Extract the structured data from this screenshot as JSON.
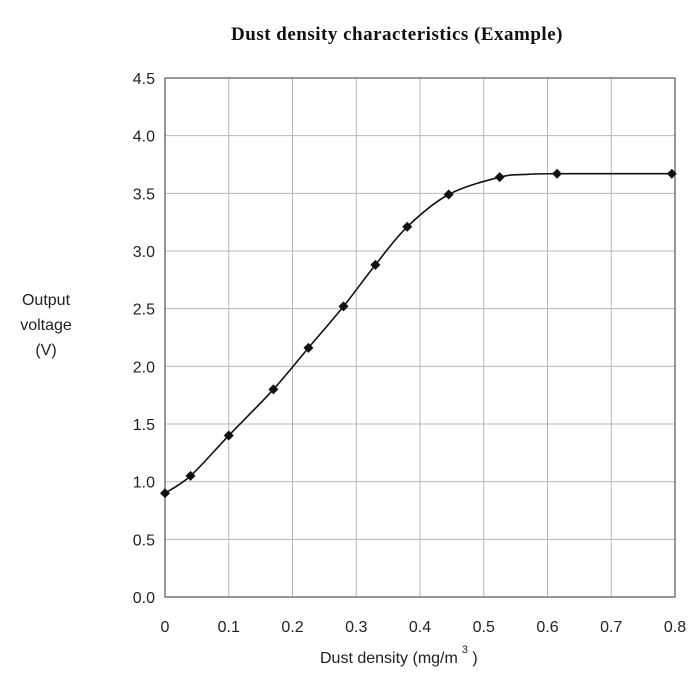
{
  "chart_data": {
    "type": "line",
    "title": "Dust density characteristics (Example)",
    "xlabel": {
      "main": "Dust density (mg/m",
      "sup": "3",
      "close": " )"
    },
    "ylabel": [
      "Output",
      "voltage",
      "(V)"
    ],
    "xlim": [
      0,
      0.8
    ],
    "ylim": [
      0,
      4.5
    ],
    "x_ticks": [
      "0",
      "0.1",
      "0.2",
      "0.3",
      "0.4",
      "0.5",
      "0.6",
      "0.7",
      "0.8"
    ],
    "y_ticks": [
      "0.0",
      "0.5",
      "1.0",
      "1.5",
      "2.0",
      "2.5",
      "3.0",
      "3.5",
      "4.0",
      "4.5"
    ],
    "grid": true,
    "marker": "diamond",
    "colors": {
      "line": "#111111",
      "grid": "#b8b8b8",
      "axis": "#555555"
    },
    "series": [
      {
        "points": [
          [
            0.0,
            0.9
          ],
          [
            0.04,
            1.05
          ],
          [
            0.1,
            1.4
          ],
          [
            0.17,
            1.8
          ],
          [
            0.225,
            2.16
          ],
          [
            0.28,
            2.52
          ],
          [
            0.33,
            2.88
          ],
          [
            0.38,
            3.21
          ],
          [
            0.445,
            3.49
          ],
          [
            0.525,
            3.64
          ],
          [
            0.615,
            3.67
          ],
          [
            0.795,
            3.67
          ]
        ],
        "curve": [
          [
            0.0,
            0.9
          ],
          [
            0.04,
            1.05
          ],
          [
            0.1,
            1.4
          ],
          [
            0.17,
            1.8
          ],
          [
            0.225,
            2.16
          ],
          [
            0.28,
            2.52
          ],
          [
            0.33,
            2.88
          ],
          [
            0.38,
            3.21
          ],
          [
            0.445,
            3.49
          ],
          [
            0.525,
            3.64
          ],
          [
            0.57,
            3.665
          ],
          [
            0.615,
            3.67
          ],
          [
            0.795,
            3.67
          ]
        ]
      }
    ]
  }
}
